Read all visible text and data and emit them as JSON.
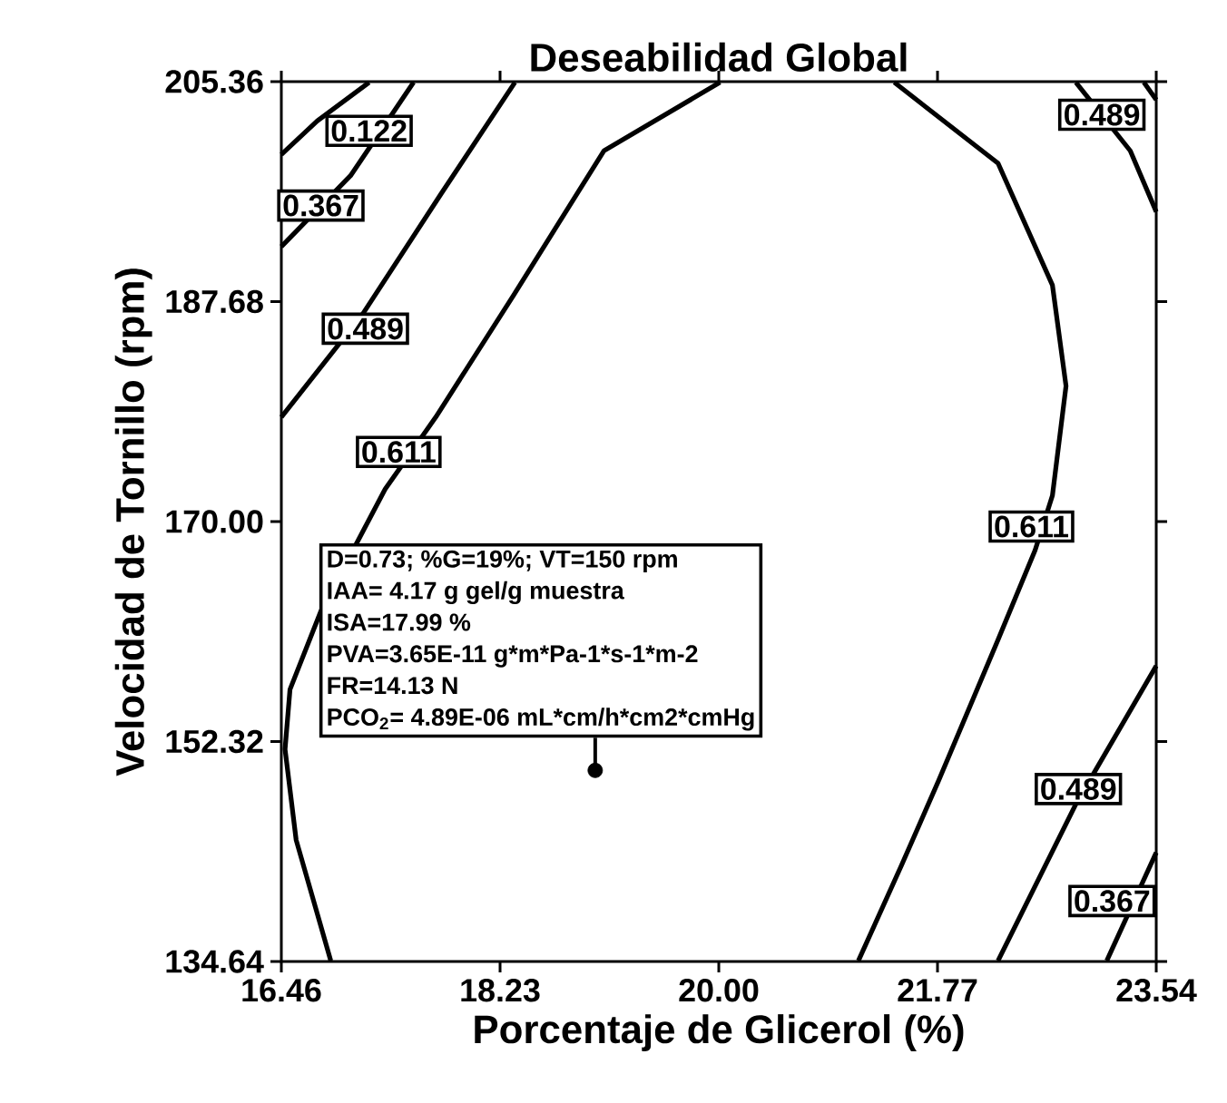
{
  "chart_data": {
    "type": "line",
    "title": "Deseabilidad Global",
    "xlabel": "Porcentaje de Glicerol (%)",
    "ylabel": "Velocidad de Tornillo (rpm)",
    "xlim": [
      16.46,
      23.54
    ],
    "ylim": [
      134.64,
      205.36
    ],
    "xticks": [
      {
        "value": 16.46,
        "label": "16.46"
      },
      {
        "value": 18.23,
        "label": "18.23"
      },
      {
        "value": 20.0,
        "label": "20.00"
      },
      {
        "value": 21.77,
        "label": "21.77"
      },
      {
        "value": 23.54,
        "label": "23.54"
      }
    ],
    "yticks": [
      {
        "value": 134.64,
        "label": "134.64"
      },
      {
        "value": 152.32,
        "label": "152.32"
      },
      {
        "value": 170.0,
        "label": "170.00"
      },
      {
        "value": 187.68,
        "label": "187.68"
      },
      {
        "value": 205.36,
        "label": "205.36"
      }
    ],
    "grid": false,
    "marker": "none",
    "line_style": "solid",
    "series": [
      {
        "color": "#000000",
        "x": [
          16.46,
          16.75,
          17.17
        ],
        "values": [
          199.5,
          202.2,
          205.3
        ]
      },
      {
        "color": "#000000",
        "x": [
          16.46,
          17.02,
          17.53
        ],
        "values": [
          192.1,
          197.8,
          205.3
        ]
      },
      {
        "color": "#000000",
        "x": [
          16.46,
          17.12,
          17.75,
          18.35
        ],
        "values": [
          178.4,
          186.7,
          196.3,
          205.3
        ]
      },
      {
        "color": "#000000",
        "x": [
          16.86,
          16.58,
          16.49,
          16.53,
          16.78,
          17.3,
          17.71,
          18.34,
          19.07,
          20.01
        ],
        "values": [
          134.7,
          144.4,
          151.7,
          156.5,
          162.8,
          172.6,
          178.4,
          188.2,
          199.8,
          205.3
        ]
      },
      {
        "color": "#000000",
        "x": [
          21.42,
          22.26,
          22.7,
          22.81,
          22.7,
          22.56,
          22.26,
          21.78,
          21.48,
          21.13
        ],
        "values": [
          205.3,
          198.8,
          189.0,
          180.9,
          172.1,
          167.7,
          160.5,
          149.2,
          142.4,
          134.7
        ]
      },
      {
        "color": "#000000",
        "x": [
          22.89,
          23.33,
          23.54
        ],
        "values": [
          205.3,
          199.8,
          194.9
        ]
      },
      {
        "color": "#000000",
        "x": [
          23.44,
          23.54
        ],
        "values": [
          205.3,
          203.9
        ]
      },
      {
        "color": "#000000",
        "x": [
          23.54,
          22.89,
          22.26
        ],
        "values": [
          158.4,
          147.3,
          134.7
        ]
      },
      {
        "color": "#000000",
        "x": [
          23.54,
          23.14
        ],
        "values": [
          143.4,
          134.7
        ]
      },
      {
        "type": "scatter",
        "marker": "circle",
        "color": "#000000",
        "x": [
          19.0
        ],
        "values": [
          150.0
        ]
      }
    ],
    "annotations": [
      {
        "text": "0.122",
        "x": 17.17,
        "y": 201.4
      },
      {
        "text": "0.367",
        "x": 16.78,
        "y": 195.4
      },
      {
        "text": "0.489",
        "x": 17.14,
        "y": 185.5
      },
      {
        "text": "0.611",
        "x": 17.41,
        "y": 175.6
      },
      {
        "text": "0.489",
        "x": 23.1,
        "y": 202.7
      },
      {
        "text": "0.611",
        "x": 22.53,
        "y": 169.6
      },
      {
        "text": "0.489",
        "x": 22.91,
        "y": 148.5
      },
      {
        "text": "0.367",
        "x": 23.36,
        "y": 139.5
      },
      "D=0.73; %G=19%;  VT=150 rpm",
      "IAA= 4.17 g gel/g muestra",
      "ISA=17.99 %",
      "PVA=3.65E-11 g*m*Pa-1*s-1*m-2",
      "FR=14.13 N",
      "PCO$_{2}$= 4.89E-06 mL*cm/h*cm2*cmHg"
    ]
  }
}
